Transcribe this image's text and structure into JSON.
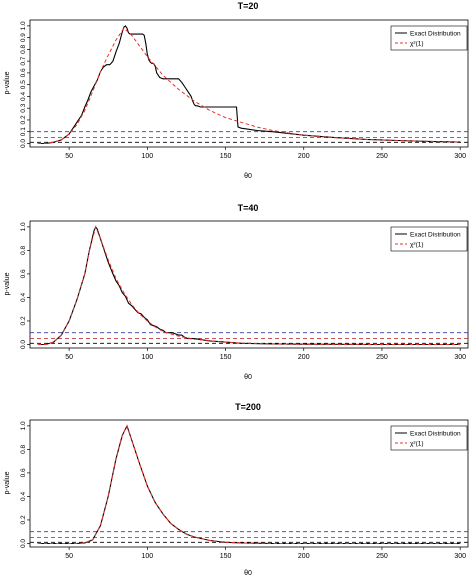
{
  "figure": {
    "colors": {
      "exact": "#000000",
      "chisq": "#e8312b",
      "ref_blue": "#3a3aa8",
      "ref_red": "#c23b3b",
      "ref_black": "#000000"
    }
  },
  "chart_data": [
    {
      "type": "line",
      "title": "T=20",
      "xlabel": "θ0",
      "ylabel": "p-value",
      "xlim": [
        25,
        305
      ],
      "ylim": [
        -0.03,
        1.05
      ],
      "xticks": [
        "50",
        "100",
        "150",
        "200",
        "250",
        "300"
      ],
      "yticks": [
        "0.0",
        "0.1",
        "0.2",
        "0.3",
        "0.4",
        "0.5",
        "0.6",
        "0.7",
        "0.8",
        "0.9",
        "1.0"
      ],
      "legend": {
        "position": "top-right",
        "entries": [
          "Exact Distribution",
          "χ²(1)"
        ]
      },
      "hlines": [
        0.1,
        0.05,
        0.01
      ],
      "series": [
        {
          "name": "Exact Distribution",
          "style": "solid",
          "x": [
            30,
            35,
            40,
            45,
            50,
            55,
            58,
            60,
            62,
            64,
            66,
            68,
            70,
            72,
            74,
            76,
            78,
            80,
            82,
            84,
            85,
            86,
            87,
            88,
            89,
            90,
            92,
            94,
            96,
            97,
            98,
            99,
            100,
            101,
            102,
            103,
            104,
            105,
            106,
            108,
            110,
            112,
            114,
            116,
            118,
            120,
            122,
            124,
            126,
            127,
            128,
            129,
            130,
            131,
            132,
            134,
            136,
            138,
            140,
            145,
            150,
            155,
            157,
            158,
            160,
            170,
            180,
            200,
            220,
            240,
            260,
            280,
            300
          ],
          "y": [
            0.0,
            0.0,
            0.01,
            0.03,
            0.08,
            0.18,
            0.24,
            0.31,
            0.37,
            0.44,
            0.49,
            0.54,
            0.61,
            0.65,
            0.67,
            0.67,
            0.7,
            0.78,
            0.85,
            0.95,
            0.99,
            1.0,
            0.98,
            0.94,
            0.93,
            0.93,
            0.93,
            0.93,
            0.93,
            0.93,
            0.92,
            0.85,
            0.76,
            0.71,
            0.69,
            0.68,
            0.68,
            0.66,
            0.6,
            0.56,
            0.55,
            0.55,
            0.55,
            0.55,
            0.55,
            0.55,
            0.52,
            0.48,
            0.44,
            0.42,
            0.4,
            0.36,
            0.33,
            0.32,
            0.32,
            0.31,
            0.31,
            0.31,
            0.31,
            0.31,
            0.31,
            0.31,
            0.31,
            0.14,
            0.13,
            0.11,
            0.1,
            0.07,
            0.05,
            0.035,
            0.025,
            0.018,
            0.012
          ]
        },
        {
          "name": "χ²(1)",
          "style": "dashed",
          "x": [
            30,
            35,
            40,
            45,
            50,
            55,
            60,
            65,
            70,
            75,
            80,
            85,
            90,
            95,
            100,
            105,
            110,
            120,
            130,
            140,
            150,
            160,
            170,
            180,
            190,
            200,
            220,
            240,
            260,
            280,
            300
          ],
          "y": [
            0.0,
            0.0,
            0.01,
            0.03,
            0.08,
            0.16,
            0.28,
            0.44,
            0.61,
            0.75,
            0.88,
            0.98,
            0.92,
            0.83,
            0.74,
            0.66,
            0.58,
            0.46,
            0.36,
            0.28,
            0.22,
            0.18,
            0.14,
            0.11,
            0.09,
            0.07,
            0.05,
            0.035,
            0.025,
            0.018,
            0.012
          ]
        }
      ]
    },
    {
      "type": "line",
      "title": "T=40",
      "xlabel": "θ0",
      "ylabel": "p-value",
      "xlim": [
        25,
        305
      ],
      "ylim": [
        -0.03,
        1.05
      ],
      "xticks": [
        "50",
        "100",
        "150",
        "200",
        "250",
        "300"
      ],
      "yticks": [
        "0.0",
        "0.2",
        "0.4",
        "0.6",
        "0.8",
        "1.0"
      ],
      "legend": {
        "position": "top-right",
        "entries": [
          "Exact Distribution",
          "χ²(1)"
        ]
      },
      "hlines": [
        0.1,
        0.05,
        0.01
      ],
      "series": [
        {
          "name": "Exact Distribution",
          "style": "solid",
          "x": [
            30,
            35,
            40,
            45,
            50,
            55,
            60,
            63,
            66,
            67,
            68,
            70,
            72,
            75,
            78,
            80,
            82,
            84,
            86,
            88,
            90,
            92,
            94,
            96,
            98,
            100,
            102,
            104,
            106,
            108,
            110,
            112,
            114,
            116,
            118,
            120,
            122,
            124,
            126,
            130,
            135,
            140,
            150,
            160,
            180,
            200,
            250,
            300
          ],
          "y": [
            0.0,
            0.0,
            0.02,
            0.08,
            0.2,
            0.38,
            0.6,
            0.8,
            0.97,
            1.0,
            0.98,
            0.9,
            0.82,
            0.7,
            0.6,
            0.54,
            0.5,
            0.44,
            0.41,
            0.35,
            0.33,
            0.3,
            0.27,
            0.26,
            0.23,
            0.21,
            0.17,
            0.16,
            0.15,
            0.13,
            0.12,
            0.1,
            0.1,
            0.1,
            0.09,
            0.08,
            0.08,
            0.06,
            0.05,
            0.05,
            0.04,
            0.03,
            0.02,
            0.01,
            0.005,
            0.002,
            0.0,
            0.0
          ]
        },
        {
          "name": "χ²(1)",
          "style": "dashed",
          "x": [
            30,
            35,
            40,
            45,
            50,
            55,
            60,
            63,
            67,
            70,
            75,
            80,
            85,
            90,
            95,
            100,
            105,
            110,
            120,
            130,
            140,
            150,
            160,
            180,
            200,
            250,
            300
          ],
          "y": [
            0.0,
            0.0,
            0.02,
            0.08,
            0.2,
            0.38,
            0.6,
            0.8,
            1.0,
            0.9,
            0.72,
            0.56,
            0.44,
            0.34,
            0.26,
            0.2,
            0.15,
            0.11,
            0.07,
            0.045,
            0.03,
            0.02,
            0.012,
            0.005,
            0.002,
            0.0,
            0.0
          ]
        }
      ]
    },
    {
      "type": "line",
      "title": "T=200",
      "xlabel": "θ0",
      "ylabel": "p-value",
      "xlim": [
        25,
        305
      ],
      "ylim": [
        -0.03,
        1.05
      ],
      "xticks": [
        "50",
        "100",
        "150",
        "200",
        "250",
        "300"
      ],
      "yticks": [
        "0.0",
        "0.2",
        "0.4",
        "0.6",
        "0.8",
        "1.0"
      ],
      "legend": {
        "position": "top-right",
        "entries": [
          "Exact Distribution",
          "χ²(1)"
        ]
      },
      "hlines": [
        0.1,
        0.05,
        0.01
      ],
      "series": [
        {
          "name": "Exact Distribution",
          "style": "solid",
          "x": [
            30,
            50,
            55,
            60,
            65,
            70,
            75,
            80,
            84,
            87,
            90,
            95,
            100,
            105,
            110,
            115,
            120,
            125,
            130,
            140,
            150,
            160,
            180,
            200,
            250,
            300
          ],
          "y": [
            0.0,
            0.0,
            0.0,
            0.005,
            0.03,
            0.15,
            0.4,
            0.72,
            0.92,
            1.0,
            0.88,
            0.68,
            0.49,
            0.35,
            0.25,
            0.17,
            0.12,
            0.08,
            0.055,
            0.025,
            0.01,
            0.005,
            0.0,
            0.0,
            0.0,
            0.0
          ]
        },
        {
          "name": "χ²(1)",
          "style": "dashed",
          "x": [
            30,
            50,
            55,
            60,
            65,
            70,
            75,
            80,
            84,
            87,
            90,
            95,
            100,
            105,
            110,
            115,
            120,
            125,
            130,
            140,
            150,
            160,
            180,
            200,
            250,
            300
          ],
          "y": [
            0.0,
            0.0,
            0.0,
            0.005,
            0.03,
            0.15,
            0.4,
            0.72,
            0.92,
            1.0,
            0.88,
            0.68,
            0.49,
            0.35,
            0.25,
            0.17,
            0.12,
            0.08,
            0.055,
            0.025,
            0.01,
            0.005,
            0.0,
            0.0,
            0.0,
            0.0
          ]
        }
      ]
    }
  ]
}
